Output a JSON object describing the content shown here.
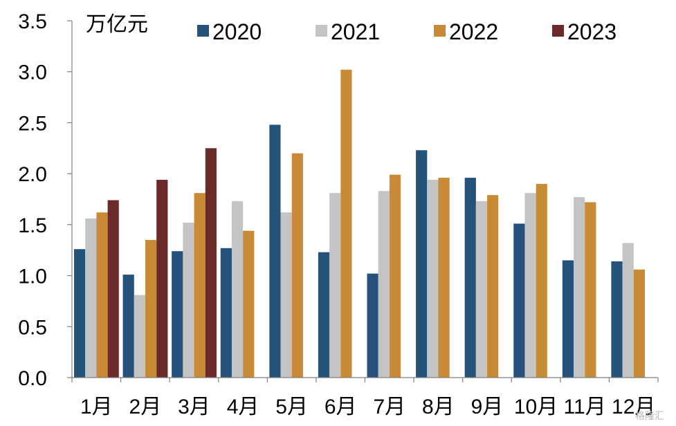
{
  "chart_data": {
    "type": "bar",
    "unit": "万亿元",
    "categories": [
      "1月",
      "2月",
      "3月",
      "4月",
      "5月",
      "6月",
      "7月",
      "8月",
      "9月",
      "10月",
      "11月",
      "12月"
    ],
    "series": [
      {
        "name": "2020",
        "color": "#25527a",
        "values": [
          1.26,
          1.01,
          1.24,
          1.27,
          2.48,
          1.23,
          1.02,
          2.23,
          1.96,
          1.51,
          1.15,
          1.14
        ]
      },
      {
        "name": "2021",
        "color": "#c4c4c4",
        "values": [
          1.56,
          0.81,
          1.52,
          1.73,
          1.62,
          1.81,
          1.83,
          1.94,
          1.73,
          1.81,
          1.77,
          1.32
        ]
      },
      {
        "name": "2022",
        "color": "#c98a35",
        "values": [
          1.62,
          1.35,
          1.81,
          1.44,
          2.2,
          3.02,
          1.99,
          1.96,
          1.79,
          1.9,
          1.72,
          1.06
        ]
      },
      {
        "name": "2023",
        "color": "#6b2a2a",
        "values": [
          1.74,
          1.94,
          2.25,
          null,
          null,
          null,
          null,
          null,
          null,
          null,
          null,
          null
        ]
      }
    ],
    "ylim": [
      0,
      3.5
    ],
    "yticks": [
      "0.0",
      "0.5",
      "1.0",
      "1.5",
      "2.0",
      "2.5",
      "3.0",
      "3.5"
    ],
    "legend": "top",
    "grid": false
  },
  "watermark": "格隆汇"
}
